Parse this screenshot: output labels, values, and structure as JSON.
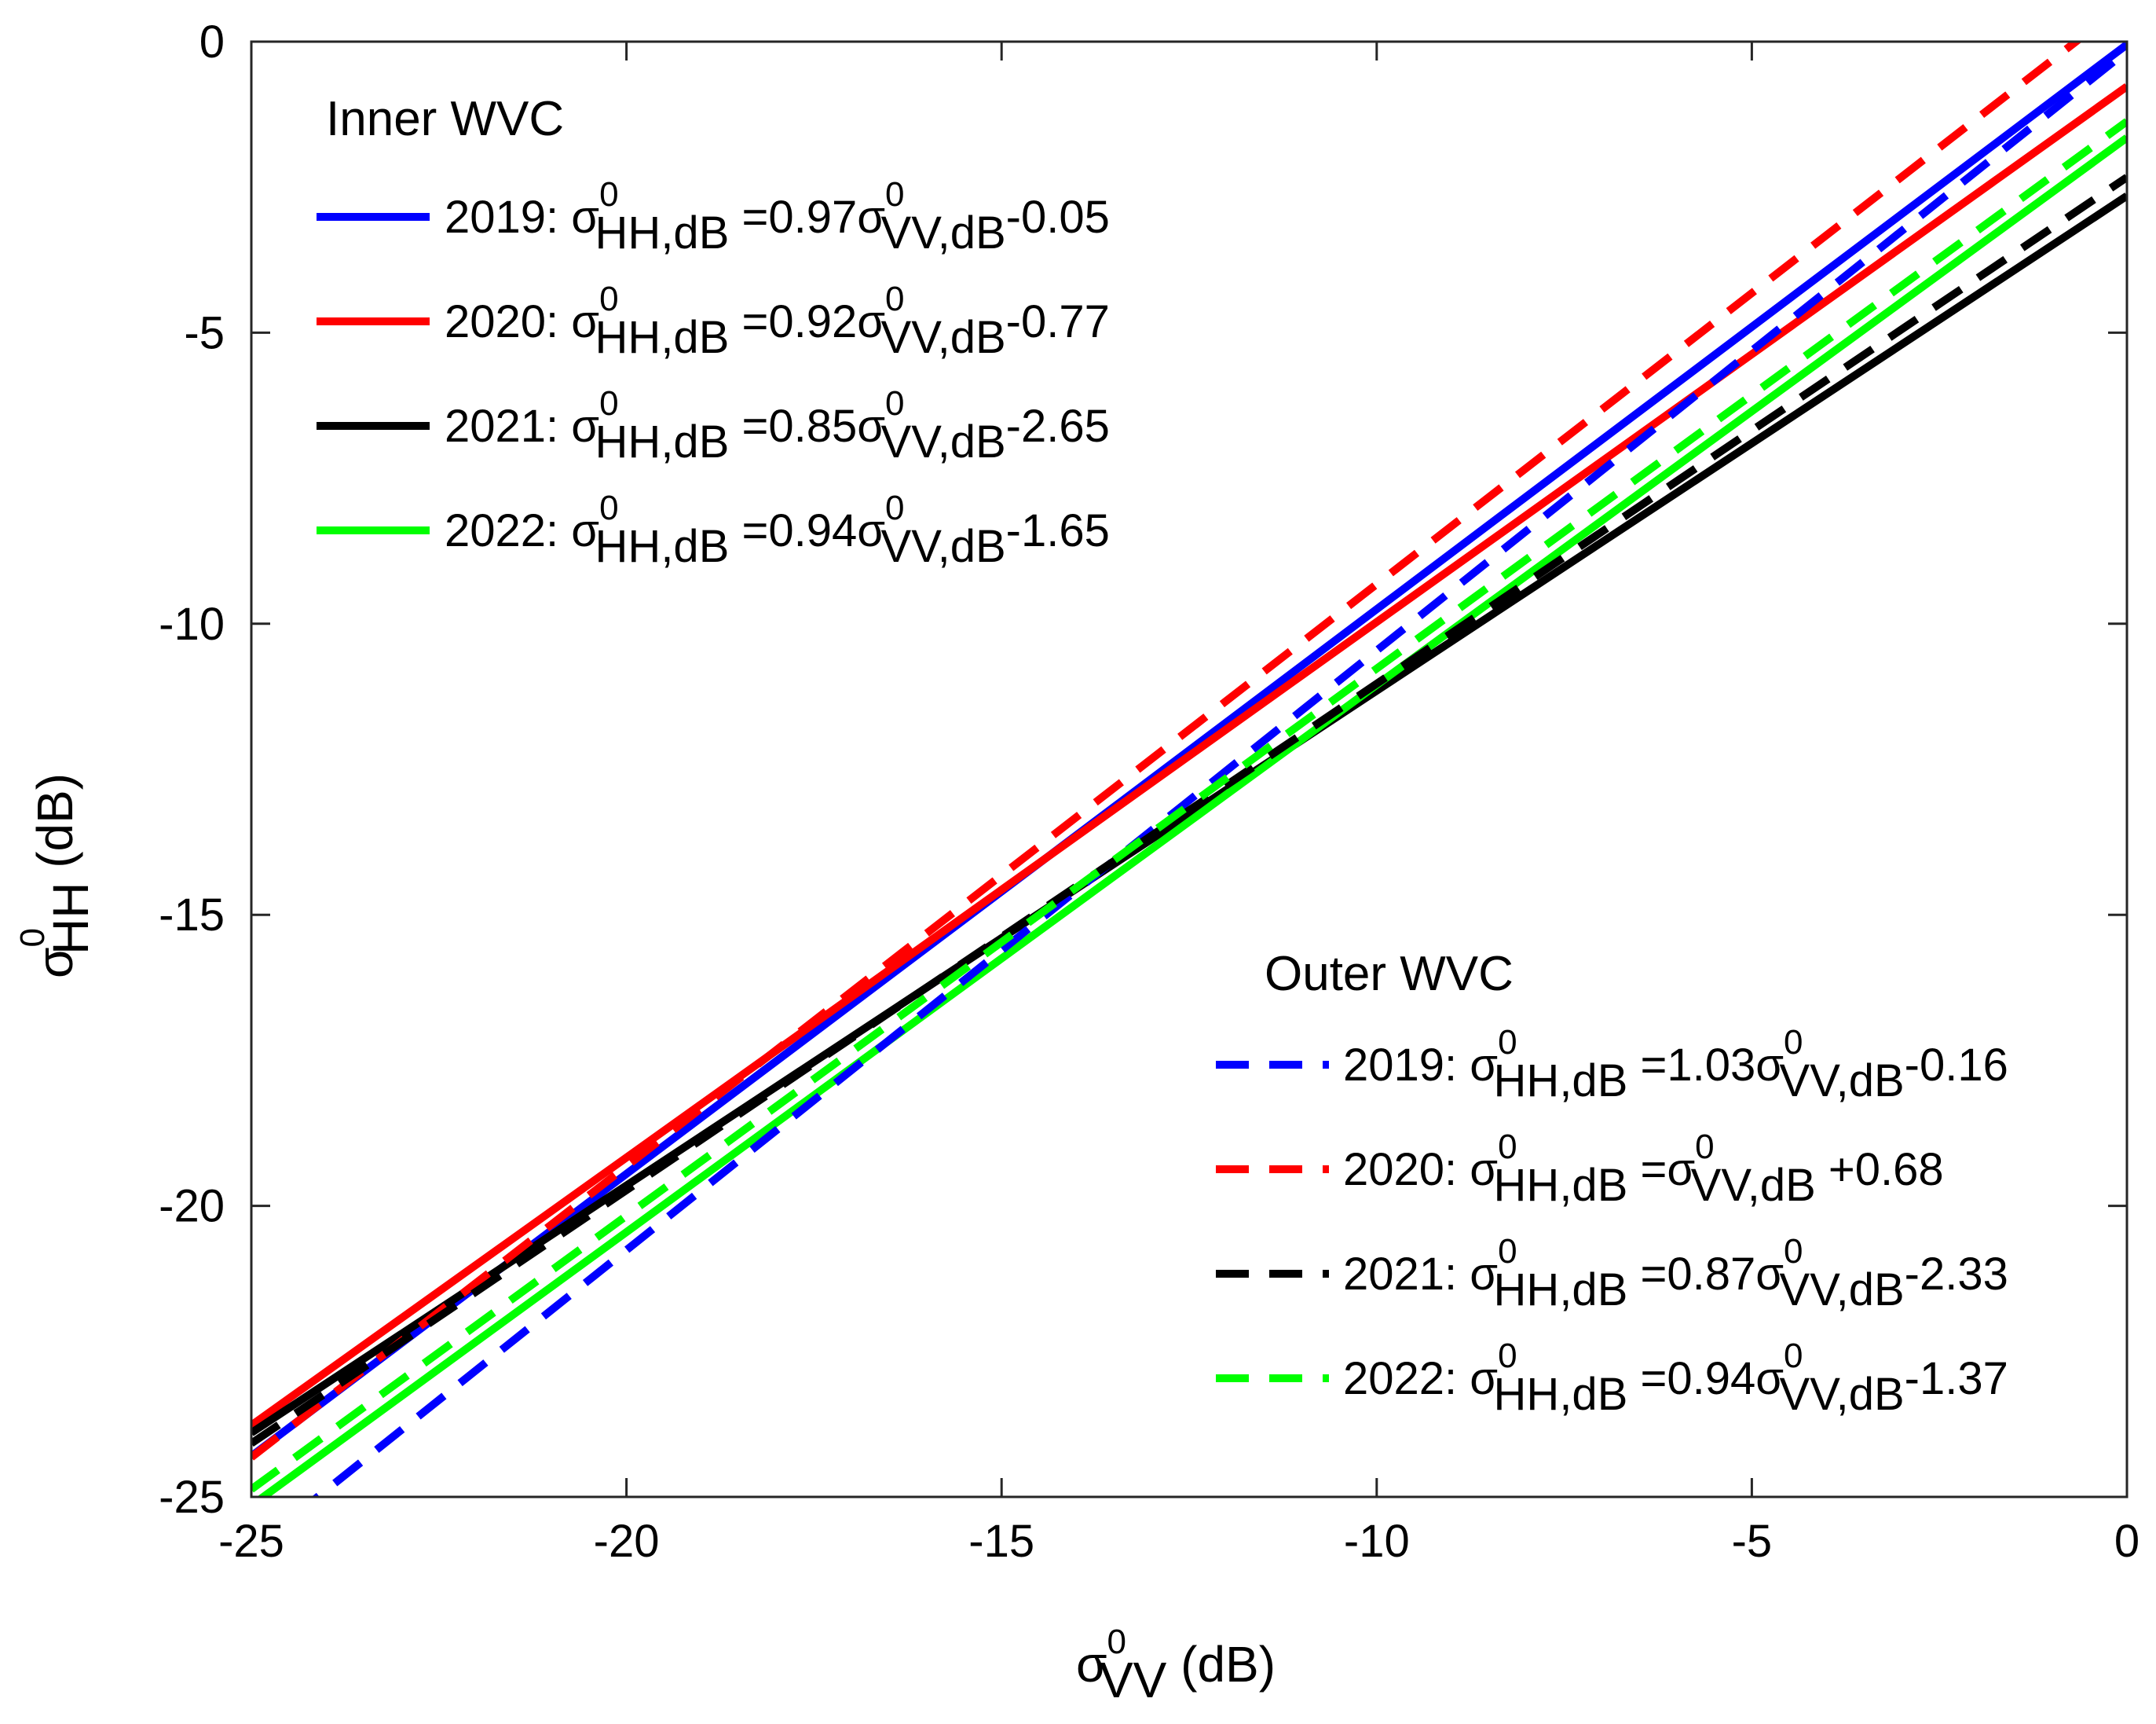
{
  "chart_data": {
    "type": "line",
    "xlabel": {
      "symbol": "σ",
      "sup": "0",
      "sub": "VV",
      "unit": " (dB)"
    },
    "ylabel": {
      "symbol": "σ",
      "sup": "0",
      "sub": "HH",
      "unit": " (dB)"
    },
    "xlim": [
      -25,
      0
    ],
    "ylim": [
      -25,
      0
    ],
    "xticks": [
      -25,
      -20,
      -15,
      -10,
      -5,
      0
    ],
    "yticks": [
      -25,
      -20,
      -15,
      -10,
      -5,
      0
    ],
    "xtick_labels": [
      "-25",
      "-20",
      "-15",
      "-10",
      "-5",
      "0"
    ],
    "ytick_labels": [
      "-25",
      "-20",
      "-15",
      "-10",
      "-5",
      "0"
    ],
    "grid": false,
    "legends": [
      {
        "title": "Inner WVC",
        "placement": "top-left",
        "entries": [
          "2019",
          "2020",
          "2021",
          "2022"
        ]
      },
      {
        "title": "Outer WVC",
        "placement": "bottom-right",
        "entries": [
          "2019",
          "2020",
          "2021",
          "2022"
        ]
      }
    ],
    "series": [
      {
        "group": "Inner WVC",
        "year": "2019",
        "color": "#0000ff",
        "style": "solid",
        "slope": 0.97,
        "intercept": -0.05,
        "eq": {
          "prefix": "2019: ",
          "mid": " =0.97",
          "suffix": "-0.05"
        }
      },
      {
        "group": "Inner WVC",
        "year": "2020",
        "color": "#ff0000",
        "style": "solid",
        "slope": 0.92,
        "intercept": -0.77,
        "eq": {
          "prefix": "2020: ",
          "mid": " =0.92",
          "suffix": "-0.77"
        }
      },
      {
        "group": "Inner WVC",
        "year": "2021",
        "color": "#000000",
        "style": "solid",
        "slope": 0.85,
        "intercept": -2.65,
        "eq": {
          "prefix": "2021: ",
          "mid": " =0.85",
          "suffix": "-2.65"
        }
      },
      {
        "group": "Inner WVC",
        "year": "2022",
        "color": "#00ff00",
        "style": "solid",
        "slope": 0.94,
        "intercept": -1.65,
        "eq": {
          "prefix": "2022: ",
          "mid": " =0.94",
          "suffix": "-1.65"
        }
      },
      {
        "group": "Outer WVC",
        "year": "2019",
        "color": "#0000ff",
        "style": "dashed",
        "slope": 1.03,
        "intercept": -0.16,
        "eq": {
          "prefix": "2019: ",
          "mid": " =1.03",
          "suffix": "-0.16"
        }
      },
      {
        "group": "Outer WVC",
        "year": "2020",
        "color": "#ff0000",
        "style": "dashed",
        "slope": 1.0,
        "intercept": 0.68,
        "eq": {
          "prefix": "2020: ",
          "mid": " =",
          "suffix": " +0.68"
        }
      },
      {
        "group": "Outer WVC",
        "year": "2021",
        "color": "#000000",
        "style": "dashed",
        "slope": 0.87,
        "intercept": -2.33,
        "eq": {
          "prefix": "2021: ",
          "mid": " =0.87",
          "suffix": "-2.33"
        }
      },
      {
        "group": "Outer WVC",
        "year": "2022",
        "color": "#00ff00",
        "style": "dashed",
        "slope": 0.94,
        "intercept": -1.37,
        "eq": {
          "prefix": "2022: ",
          "mid": " =0.94",
          "suffix": "-1.37"
        }
      }
    ],
    "eq_symbols": {
      "sigma": "σ",
      "sup": "0",
      "lhs_sub": "HH,dB",
      "rhs_sub": "VV,dB"
    }
  }
}
